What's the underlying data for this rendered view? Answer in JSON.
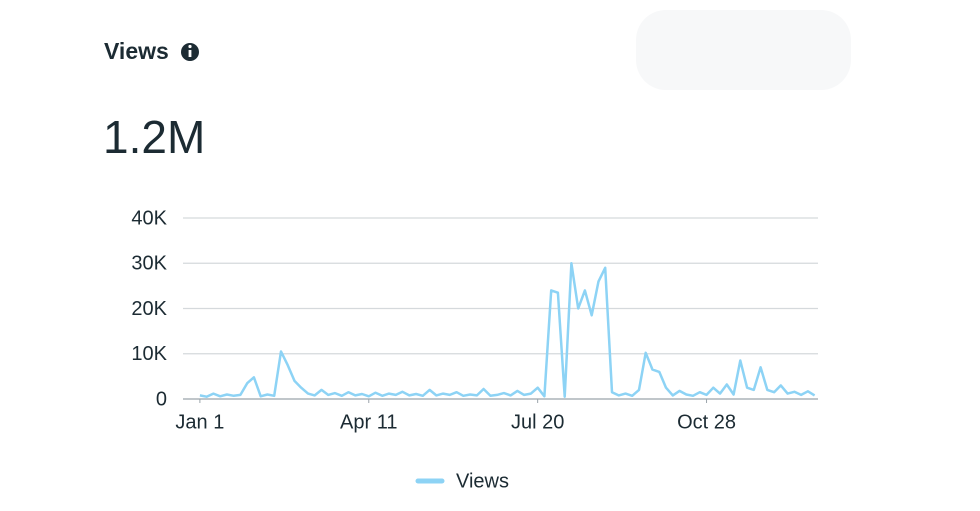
{
  "header": {
    "title": "Views",
    "total": "1.2M"
  },
  "chart_data": {
    "type": "line",
    "x": [
      0,
      4,
      8,
      12,
      16,
      20,
      24,
      28,
      32,
      36,
      40,
      44,
      48,
      52,
      56,
      60,
      64,
      68,
      72,
      76,
      80,
      84,
      88,
      92,
      96,
      100,
      104,
      108,
      112,
      116,
      120,
      124,
      128,
      132,
      136,
      140,
      144,
      148,
      152,
      156,
      160,
      164,
      168,
      172,
      176,
      180,
      184,
      188,
      192,
      196,
      200,
      204,
      208,
      212,
      216,
      220,
      224,
      228,
      232,
      236,
      240,
      244,
      248,
      252,
      256,
      260,
      264,
      268,
      272,
      276,
      280,
      284,
      288,
      292,
      296,
      300,
      304,
      308,
      312,
      316,
      320,
      324,
      328,
      332,
      336,
      340,
      344,
      348,
      352,
      356,
      360,
      364
    ],
    "series": [
      {
        "name": "Views",
        "color": "#8dd3f5",
        "values": [
          800,
          500,
          1200,
          600,
          1000,
          700,
          900,
          3500,
          4800,
          600,
          1000,
          700,
          10500,
          7500,
          4000,
          2500,
          1200,
          800,
          2000,
          900,
          1300,
          700,
          1500,
          800,
          1100,
          600,
          1400,
          700,
          1200,
          900,
          1600,
          800,
          1100,
          700,
          2000,
          800,
          1200,
          900,
          1500,
          700,
          1000,
          800,
          2200,
          700,
          900,
          1300,
          800,
          1800,
          900,
          1200,
          2500,
          600,
          24000,
          23500,
          500,
          30000,
          20000,
          24000,
          18500,
          26000,
          29000,
          1500,
          800,
          1200,
          700,
          2000,
          10200,
          6500,
          6000,
          2500,
          800,
          1800,
          1000,
          700,
          1500,
          900,
          2500,
          1200,
          3200,
          1000,
          8500,
          2500,
          2000,
          7000,
          2000,
          1500,
          3000,
          1200,
          1600,
          900,
          1700,
          800
        ]
      }
    ],
    "xlim": [
      -10,
      366
    ],
    "xticks": [
      {
        "value": 0,
        "label": "Jan 1"
      },
      {
        "value": 100,
        "label": "Apr 11"
      },
      {
        "value": 200,
        "label": "Jul 20"
      },
      {
        "value": 300,
        "label": "Oct 28"
      }
    ],
    "ylim": [
      0,
      40000
    ],
    "yticks": [
      0,
      {
        "value": 10000,
        "label": "10K"
      },
      {
        "value": 20000,
        "label": "20K"
      },
      {
        "value": 30000,
        "label": "30K"
      },
      {
        "value": 40000,
        "label": "40K"
      }
    ],
    "grid": true
  }
}
